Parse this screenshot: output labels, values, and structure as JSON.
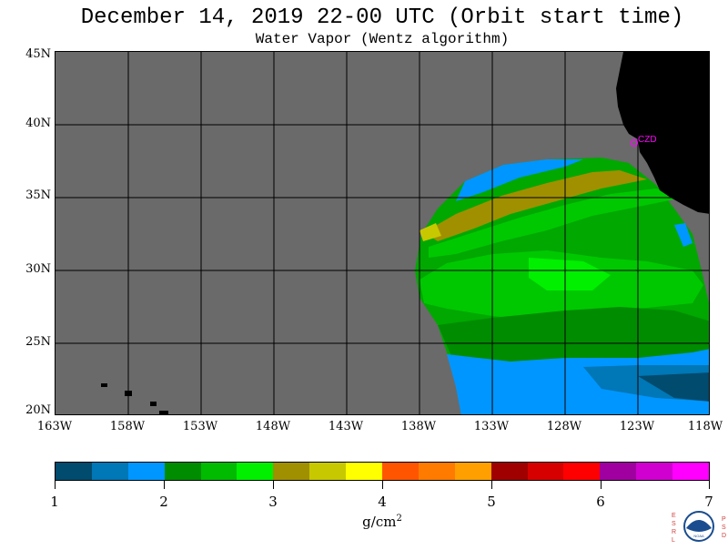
{
  "header": {
    "title": "December 14, 2019  22-00 UTC  (Orbit start time)",
    "subtitle": "Water Vapor (Wentz algorithm)"
  },
  "map": {
    "ocean_no_data_color": "#6a6a6a",
    "land_color": "#000000",
    "grid_color": "#000000",
    "station_label": "CZD",
    "station_color": "#ff00ff",
    "lat_labels": [
      "45N",
      "40N",
      "35N",
      "30N",
      "25N",
      "20N"
    ],
    "lon_labels": [
      "163W",
      "158W",
      "153W",
      "148W",
      "143W",
      "138W",
      "133W",
      "128W",
      "123W",
      "118W"
    ]
  },
  "colorbar": {
    "tick_labels": [
      "1",
      "2",
      "3",
      "4",
      "5",
      "6",
      "7"
    ],
    "units": "g/cm",
    "units_exp": "2",
    "colors": [
      "#004b6e",
      "#0077b6",
      "#0096ff",
      "#008c00",
      "#00bb00",
      "#00f000",
      "#a09000",
      "#c8c800",
      "#ffff00",
      "#ff5500",
      "#ff7b00",
      "#ffa000",
      "#a00000",
      "#d70000",
      "#ff0000",
      "#a000a0",
      "#d000d0",
      "#ff00ff"
    ]
  },
  "logo": {
    "left_letters": "ESRL",
    "right_letters": "PSD",
    "center_text": "NOAA"
  }
}
